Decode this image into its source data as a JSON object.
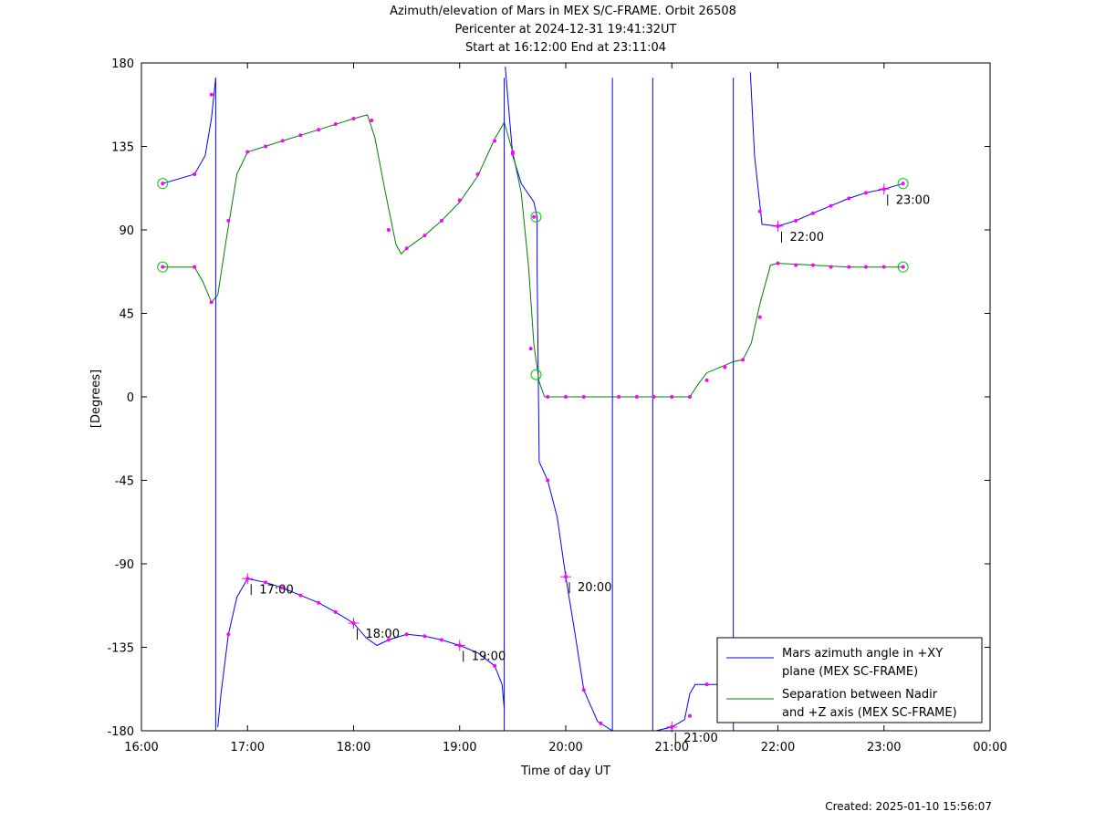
{
  "chart_data": {
    "type": "line",
    "title_lines": [
      "Azimuth/elevation of Mars in MEX S/C-FRAME.  Orbit 26508",
      "Pericenter at 2024-12-31 19:41:32UT",
      "Start at 16:12:00 End at 23:11:04"
    ],
    "xlabel": "Time of day UT",
    "ylabel": "[Degrees]",
    "xlim": [
      16.0,
      24.0
    ],
    "ylim": [
      -180,
      180
    ],
    "xticks": [
      16,
      17,
      18,
      19,
      20,
      21,
      22,
      23,
      24
    ],
    "xtick_labels": [
      "16:00",
      "17:00",
      "18:00",
      "19:00",
      "20:00",
      "21:00",
      "22:00",
      "23:00",
      "00:00"
    ],
    "yticks": [
      180,
      135,
      90,
      45,
      0,
      -45,
      -90,
      -135,
      -180
    ],
    "ytick_labels": [
      "180",
      "135",
      "90",
      "45",
      "0",
      "-45",
      "-90",
      "-135",
      "-180"
    ],
    "legend_position": "bottom-right",
    "series": [
      {
        "name": "Mars azimuth angle in +XY plane (MEX SC-FRAME)",
        "legend_lines": [
          "Mars azimuth angle in +XY",
          "plane (MEX SC-FRAME)"
        ],
        "color": "#0000ff",
        "segments": [
          [
            [
              16.2,
              115
            ],
            [
              16.5,
              120
            ],
            [
              16.6,
              130
            ],
            [
              16.66,
              150
            ],
            [
              16.7,
              172
            ]
          ],
          [
            [
              16.72,
              -178
            ],
            [
              16.75,
              -160
            ],
            [
              16.82,
              -128
            ],
            [
              16.9,
              -108
            ],
            [
              17.0,
              -98
            ],
            [
              17.17,
              -100
            ],
            [
              17.33,
              -103
            ],
            [
              17.5,
              -107
            ],
            [
              17.67,
              -111
            ],
            [
              17.83,
              -116
            ],
            [
              18.0,
              -122
            ],
            [
              18.12,
              -130
            ],
            [
              18.22,
              -134
            ],
            [
              18.33,
              -131
            ],
            [
              18.5,
              -128
            ],
            [
              18.67,
              -129
            ],
            [
              18.83,
              -131
            ],
            [
              19.0,
              -134
            ],
            [
              19.17,
              -138
            ],
            [
              19.33,
              -145
            ],
            [
              19.4,
              -155
            ],
            [
              19.42,
              -168
            ]
          ],
          [
            [
              19.43,
              178
            ],
            [
              19.47,
              150
            ],
            [
              19.5,
              130
            ],
            [
              19.58,
              115
            ],
            [
              19.7,
              105
            ],
            [
              19.73,
              97
            ],
            [
              19.73,
              70
            ],
            [
              19.75,
              -35
            ],
            [
              19.83,
              -45
            ],
            [
              19.92,
              -65
            ],
            [
              20.0,
              -97
            ],
            [
              20.08,
              -125
            ],
            [
              20.17,
              -158
            ],
            [
              20.3,
              -175
            ],
            [
              20.44,
              -180
            ]
          ],
          [
            [
              20.47,
              180
            ],
            [
              20.82,
              180
            ]
          ],
          [
            [
              20.85,
              -180
            ],
            [
              21.0,
              -178
            ],
            [
              21.12,
              -174
            ],
            [
              21.17,
              -160
            ],
            [
              21.22,
              -155
            ],
            [
              21.35,
              -155
            ],
            [
              21.5,
              -155
            ],
            [
              21.55,
              -154
            ],
            [
              21.58,
              -153
            ]
          ],
          [
            [
              21.74,
              175
            ],
            [
              21.78,
              130
            ],
            [
              21.85,
              93
            ],
            [
              22.0,
              92
            ],
            [
              22.17,
              95
            ],
            [
              22.33,
              99
            ],
            [
              22.5,
              103
            ],
            [
              22.67,
              107
            ],
            [
              22.83,
              110
            ],
            [
              23.0,
              112
            ],
            [
              23.18,
              115
            ]
          ]
        ],
        "markers": [
          [
            16.2,
            115
          ],
          [
            16.5,
            120
          ],
          [
            16.66,
            163
          ],
          [
            16.82,
            -128
          ],
          [
            17.0,
            -98
          ],
          [
            17.17,
            -100
          ],
          [
            17.33,
            -103
          ],
          [
            17.5,
            -107
          ],
          [
            17.67,
            -111
          ],
          [
            17.83,
            -116
          ],
          [
            18.0,
            -122
          ],
          [
            18.33,
            -131
          ],
          [
            18.5,
            -128
          ],
          [
            18.67,
            -129
          ],
          [
            18.83,
            -131
          ],
          [
            19.0,
            -134
          ],
          [
            19.33,
            -145
          ],
          [
            19.5,
            132
          ],
          [
            19.7,
            97
          ],
          [
            19.83,
            -45
          ],
          [
            20.0,
            -97
          ],
          [
            20.17,
            -158
          ],
          [
            20.33,
            -176
          ],
          [
            21.0,
            -178
          ],
          [
            21.17,
            -172
          ],
          [
            21.33,
            -155
          ],
          [
            21.5,
            -155
          ],
          [
            21.83,
            100
          ],
          [
            22.0,
            92
          ],
          [
            22.17,
            95
          ],
          [
            22.33,
            99
          ],
          [
            22.5,
            103
          ],
          [
            22.67,
            107
          ],
          [
            22.83,
            110
          ],
          [
            23.0,
            112
          ],
          [
            23.18,
            115
          ]
        ]
      },
      {
        "name": "Separation between Nadir and +Z axis (MEX SC-FRAME)",
        "legend_lines": [
          "Separation between Nadir",
          "and +Z axis (MEX SC-FRAME)"
        ],
        "color": "#008000",
        "segments": [
          [
            [
              16.2,
              70
            ],
            [
              16.5,
              70
            ],
            [
              16.58,
              62
            ],
            [
              16.66,
              51
            ],
            [
              16.72,
              55
            ],
            [
              16.8,
              85
            ],
            [
              16.9,
              120
            ],
            [
              17.0,
              132
            ],
            [
              17.33,
              138
            ],
            [
              17.67,
              144
            ],
            [
              18.0,
              150
            ],
            [
              18.13,
              152
            ],
            [
              18.2,
              140
            ],
            [
              18.3,
              110
            ],
            [
              18.4,
              82
            ],
            [
              18.45,
              77
            ],
            [
              18.5,
              80
            ],
            [
              18.67,
              87
            ],
            [
              18.83,
              95
            ],
            [
              19.0,
              105
            ],
            [
              19.17,
              119
            ],
            [
              19.33,
              139
            ],
            [
              19.42,
              148
            ],
            [
              19.5,
              132
            ],
            [
              19.58,
              110
            ],
            [
              19.65,
              70
            ],
            [
              19.7,
              28
            ],
            [
              19.75,
              8
            ],
            [
              19.8,
              0
            ],
            [
              20.0,
              0
            ],
            [
              20.5,
              0
            ],
            [
              21.0,
              0
            ],
            [
              21.17,
              0
            ],
            [
              21.25,
              7
            ],
            [
              21.33,
              13
            ],
            [
              21.5,
              17
            ],
            [
              21.58,
              19
            ],
            [
              21.67,
              20
            ],
            [
              21.75,
              29
            ],
            [
              21.83,
              50
            ],
            [
              21.93,
              71
            ],
            [
              22.0,
              72
            ],
            [
              22.33,
              71
            ],
            [
              22.67,
              70
            ],
            [
              23.0,
              70
            ],
            [
              23.18,
              70
            ]
          ]
        ],
        "markers": [
          [
            16.2,
            70
          ],
          [
            16.5,
            70
          ],
          [
            16.66,
            51
          ],
          [
            16.82,
            95
          ],
          [
            17.0,
            132
          ],
          [
            17.17,
            135
          ],
          [
            17.33,
            138
          ],
          [
            17.5,
            141
          ],
          [
            17.67,
            144
          ],
          [
            17.83,
            147
          ],
          [
            18.0,
            150
          ],
          [
            18.17,
            149
          ],
          [
            18.33,
            90
          ],
          [
            18.5,
            80
          ],
          [
            18.67,
            87
          ],
          [
            18.83,
            95
          ],
          [
            19.0,
            106
          ],
          [
            19.17,
            120
          ],
          [
            19.33,
            138
          ],
          [
            19.5,
            131
          ],
          [
            19.67,
            26
          ],
          [
            19.83,
            0
          ],
          [
            20.0,
            0
          ],
          [
            20.17,
            0
          ],
          [
            20.5,
            0
          ],
          [
            20.67,
            0
          ],
          [
            20.83,
            0
          ],
          [
            21.0,
            0
          ],
          [
            21.17,
            0
          ],
          [
            21.33,
            9
          ],
          [
            21.5,
            16
          ],
          [
            21.67,
            20
          ],
          [
            21.83,
            43
          ],
          [
            22.0,
            72
          ],
          [
            22.17,
            71
          ],
          [
            22.33,
            71
          ],
          [
            22.5,
            70
          ],
          [
            22.67,
            70
          ],
          [
            22.83,
            70
          ],
          [
            23.0,
            70
          ],
          [
            23.18,
            70
          ]
        ]
      }
    ],
    "start_end_circles": [
      [
        16.2,
        115
      ],
      [
        16.2,
        70
      ],
      [
        19.72,
        97
      ],
      [
        19.72,
        12
      ],
      [
        23.18,
        115
      ],
      [
        23.18,
        70
      ]
    ],
    "hour_annotations": [
      {
        "label": "17:00",
        "x": 17.0,
        "y": -98
      },
      {
        "label": "18:00",
        "x": 18.0,
        "y": -122
      },
      {
        "label": "19:00",
        "x": 19.0,
        "y": -134
      },
      {
        "label": "20:00",
        "x": 20.0,
        "y": -97
      },
      {
        "label": "21:00",
        "x": 21.0,
        "y": -178
      },
      {
        "label": "22:00",
        "x": 22.0,
        "y": 92
      },
      {
        "label": "23:00",
        "x": 23.0,
        "y": 112
      }
    ],
    "colors": {
      "marker": "#ff00ff",
      "circle": "#00cc00"
    }
  },
  "footer": {
    "created": "Created: 2025-01-10 15:56:07"
  }
}
